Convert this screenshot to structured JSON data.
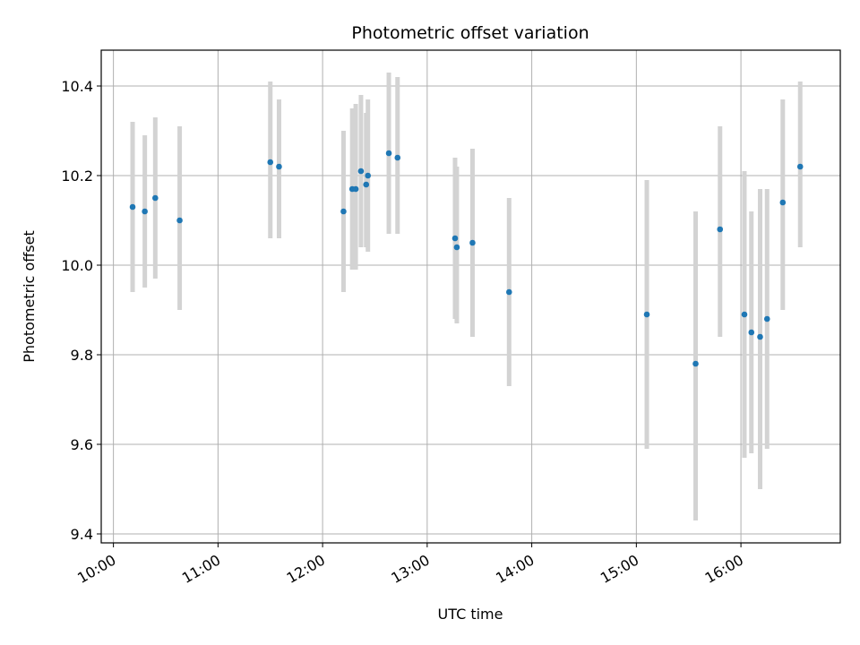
{
  "chart_data": {
    "type": "scatter",
    "title": "Photometric offset variation",
    "xlabel": "UTC time",
    "ylabel": "Photometric offset",
    "x_ticks": [
      "10:00",
      "11:00",
      "12:00",
      "13:00",
      "14:00",
      "15:00",
      "16:00"
    ],
    "y_ticks": [
      "9.4",
      "9.6",
      "9.8",
      "10.0",
      "10.2",
      "10.4"
    ],
    "xlim": [
      "09:53",
      "16:57"
    ],
    "ylim": [
      9.38,
      10.48
    ],
    "grid": true,
    "legend": "none",
    "colors": {
      "point": "#1f77b4",
      "errorbar": "#d3d3d3",
      "grid": "#b0b0b0"
    },
    "points": [
      {
        "x": "10:11",
        "y": 10.13,
        "ylow": 9.94,
        "yhigh": 10.32
      },
      {
        "x": "10:18",
        "y": 10.12,
        "ylow": 9.95,
        "yhigh": 10.29
      },
      {
        "x": "10:24",
        "y": 10.15,
        "ylow": 9.97,
        "yhigh": 10.33
      },
      {
        "x": "10:38",
        "y": 10.1,
        "ylow": 9.9,
        "yhigh": 10.31
      },
      {
        "x": "11:30",
        "y": 10.23,
        "ylow": 10.06,
        "yhigh": 10.41
      },
      {
        "x": "11:35",
        "y": 10.22,
        "ylow": 10.06,
        "yhigh": 10.37
      },
      {
        "x": "12:12",
        "y": 10.12,
        "ylow": 9.94,
        "yhigh": 10.3
      },
      {
        "x": "12:17",
        "y": 10.17,
        "ylow": 9.99,
        "yhigh": 10.35
      },
      {
        "x": "12:19",
        "y": 10.17,
        "ylow": 9.99,
        "yhigh": 10.36
      },
      {
        "x": "12:22",
        "y": 10.21,
        "ylow": 10.04,
        "yhigh": 10.38
      },
      {
        "x": "12:25",
        "y": 10.18,
        "ylow": 10.04,
        "yhigh": 10.34
      },
      {
        "x": "12:26",
        "y": 10.2,
        "ylow": 10.03,
        "yhigh": 10.37
      },
      {
        "x": "12:38",
        "y": 10.25,
        "ylow": 10.07,
        "yhigh": 10.43
      },
      {
        "x": "12:43",
        "y": 10.24,
        "ylow": 10.07,
        "yhigh": 10.42
      },
      {
        "x": "13:16",
        "y": 10.06,
        "ylow": 9.88,
        "yhigh": 10.24
      },
      {
        "x": "13:17",
        "y": 10.04,
        "ylow": 9.87,
        "yhigh": 10.22
      },
      {
        "x": "13:26",
        "y": 10.05,
        "ylow": 9.84,
        "yhigh": 10.26
      },
      {
        "x": "13:47",
        "y": 9.94,
        "ylow": 9.73,
        "yhigh": 10.15
      },
      {
        "x": "15:06",
        "y": 9.89,
        "ylow": 9.59,
        "yhigh": 10.19
      },
      {
        "x": "15:34",
        "y": 9.78,
        "ylow": 9.43,
        "yhigh": 10.12
      },
      {
        "x": "15:48",
        "y": 10.08,
        "ylow": 9.84,
        "yhigh": 10.31
      },
      {
        "x": "16:02",
        "y": 9.89,
        "ylow": 9.57,
        "yhigh": 10.21
      },
      {
        "x": "16:06",
        "y": 9.85,
        "ylow": 9.58,
        "yhigh": 10.12
      },
      {
        "x": "16:11",
        "y": 9.84,
        "ylow": 9.5,
        "yhigh": 10.17
      },
      {
        "x": "16:15",
        "y": 9.88,
        "ylow": 9.59,
        "yhigh": 10.17
      },
      {
        "x": "16:24",
        "y": 10.14,
        "ylow": 9.9,
        "yhigh": 10.37
      },
      {
        "x": "16:34",
        "y": 10.22,
        "ylow": 10.04,
        "yhigh": 10.41
      }
    ]
  }
}
